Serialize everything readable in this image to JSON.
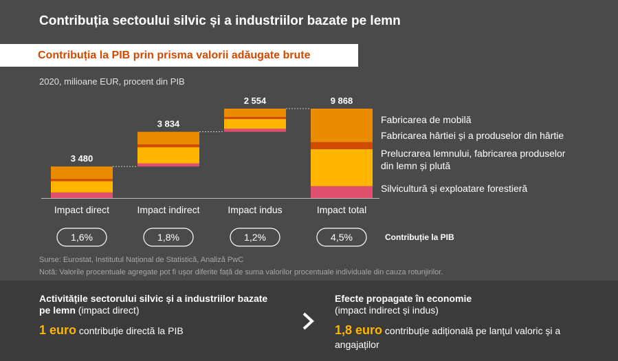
{
  "header": {
    "title": "Contribuția sectoului silvic și a industriilor bazate pe lemn",
    "subtitle": "Contribuția la PIB prin prisma valorii adăugate brute",
    "units": "2020, milioane EUR, procent din PIB"
  },
  "chart_data": {
    "type": "waterfall",
    "categories": [
      "Impact direct",
      "Impact indirect",
      "Impact indus",
      "Impact total"
    ],
    "totals": [
      3480,
      3834,
      2554,
      9868
    ],
    "total_labels": [
      "3 480",
      "3 834",
      "2 554",
      "9 868"
    ],
    "series": [
      {
        "name": "Silvicultură și exploatare forestieră",
        "color": "#e0506e",
        "values": [
          620,
          350,
          340,
          1310
        ]
      },
      {
        "name": "Prelucrarea lemnului, fabricarea produselor din lemn și plută",
        "color": "#ffb600",
        "values": [
          1240,
          1780,
          1070,
          4090
        ]
      },
      {
        "name": "Fabricarea hârtiei și a produselor din hârtie",
        "color": "#d04a02",
        "values": [
          240,
          300,
          230,
          770
        ]
      },
      {
        "name": "Fabricarea de mobilă",
        "color": "#eb8c00",
        "values": [
          1380,
          1404,
          914,
          3698
        ]
      }
    ],
    "gdp_share": [
      "1,6%",
      "1,8%",
      "1,2%",
      "4,5%"
    ],
    "gdp_share_label": "Contribuție la PIB"
  },
  "footer": {
    "source": "Surse: Eurostat, Institutul Național de Statistică, Analiză PwC",
    "note": "Notă: Valorile procentuale agregate pot fi ușor diferite față de suma valorilor procentuale individuale din cauza rotunjirilor."
  },
  "bottom": {
    "left_title_bold": "Activitățile sectorului silvic și a industriilor bazate pe lemn",
    "left_title_rest": " (impact direct)",
    "left_amount": "1 euro",
    "left_text": " contribuție directă la PIB",
    "right_title_bold": "Efecte propagate în economie",
    "right_title_rest": "(impact indirect și indus)",
    "right_amount": "1,8 euro",
    "right_text": " contribuție adițională pe lanțul valoric și a angajaților"
  }
}
